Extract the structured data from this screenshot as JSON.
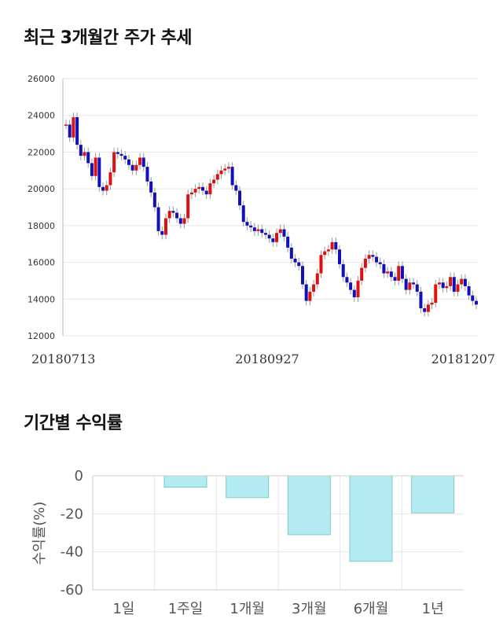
{
  "titles": {
    "price_trend": "최근 3개월간 주가 추세",
    "period_returns": "기간별 수익률"
  },
  "colors": {
    "up": "#dd1111",
    "down": "#1111bb",
    "wick": "#999999",
    "bar_fill": "#b2ebf2",
    "bar_stroke": "#80cbc4",
    "grid": "#e6e6e6"
  },
  "chart_data": [
    {
      "type": "candlestick",
      "title": "최근 3개월간 주가 추세",
      "ylim": [
        12000,
        26000
      ],
      "yticks": [
        12000,
        14000,
        16000,
        18000,
        20000,
        22000,
        24000,
        26000
      ],
      "date_labels": [
        "20180713",
        "20180927",
        "20181207"
      ],
      "grid": true,
      "closes": [
        23500,
        22800,
        23900,
        22400,
        21800,
        22000,
        21400,
        20700,
        21700,
        20100,
        19900,
        20200,
        20900,
        22000,
        21900,
        21800,
        21600,
        21300,
        21000,
        21300,
        21700,
        21200,
        20400,
        19800,
        19000,
        17700,
        17500,
        18400,
        18800,
        18700,
        18400,
        18100,
        18400,
        19700,
        19800,
        20000,
        20100,
        19900,
        19700,
        20300,
        20500,
        20800,
        21000,
        21100,
        21200,
        20200,
        19900,
        19100,
        18200,
        18000,
        17900,
        17700,
        17800,
        17600,
        17500,
        17300,
        17100,
        17600,
        17800,
        17400,
        16800,
        16200,
        16000,
        15800,
        14800,
        13900,
        14400,
        14800,
        15400,
        16400,
        16600,
        16700,
        17100,
        16700,
        15900,
        15200,
        14900,
        14500,
        14100,
        15000,
        15700,
        16200,
        16400,
        16300,
        16000,
        15900,
        15400,
        15500,
        15200,
        15000,
        15800,
        15100,
        14500,
        14900,
        14800,
        14400,
        13500,
        13300,
        13700,
        13800,
        14800,
        14900,
        14600,
        14700,
        15200,
        14400,
        14800,
        15100,
        14700,
        14200,
        13900,
        13700
      ],
      "opens": [
        23500,
        23500,
        22800,
        23900,
        22400,
        21800,
        22000,
        21400,
        20700,
        21700,
        20100,
        19900,
        20200,
        20900,
        22000,
        21900,
        21800,
        21600,
        21300,
        21000,
        21300,
        21700,
        21200,
        20400,
        19800,
        19000,
        17700,
        17500,
        18400,
        18800,
        18700,
        18400,
        18100,
        18400,
        19700,
        19800,
        20000,
        20100,
        19900,
        19700,
        20300,
        20500,
        20800,
        21000,
        21100,
        21200,
        20200,
        19900,
        19100,
        18200,
        18000,
        17900,
        17700,
        17800,
        17600,
        17500,
        17300,
        17100,
        17600,
        17800,
        17400,
        16800,
        16200,
        16000,
        15800,
        14800,
        13900,
        14400,
        14800,
        15400,
        16400,
        16600,
        16700,
        17100,
        16700,
        15900,
        15200,
        14900,
        14500,
        14100,
        15000,
        15700,
        16200,
        16400,
        16300,
        16000,
        15900,
        15400,
        15500,
        15200,
        15000,
        15800,
        15100,
        14500,
        14900,
        14800,
        14400,
        13500,
        13300,
        13700,
        13800,
        14800,
        14900,
        14600,
        14700,
        15200,
        14400,
        14800,
        15100,
        14700,
        14200,
        13900
      ]
    },
    {
      "type": "bar",
      "title": "기간별 수익률",
      "ylabel": "수익률(%)",
      "categories": [
        "1일",
        "1주일",
        "1개월",
        "3개월",
        "6개월",
        "1년"
      ],
      "values": [
        0,
        -6,
        -11.5,
        -31,
        -45,
        -19.5
      ],
      "ylim": [
        -60,
        0
      ],
      "yticks": [
        0,
        -20,
        -40,
        -60
      ],
      "grid": true
    }
  ]
}
